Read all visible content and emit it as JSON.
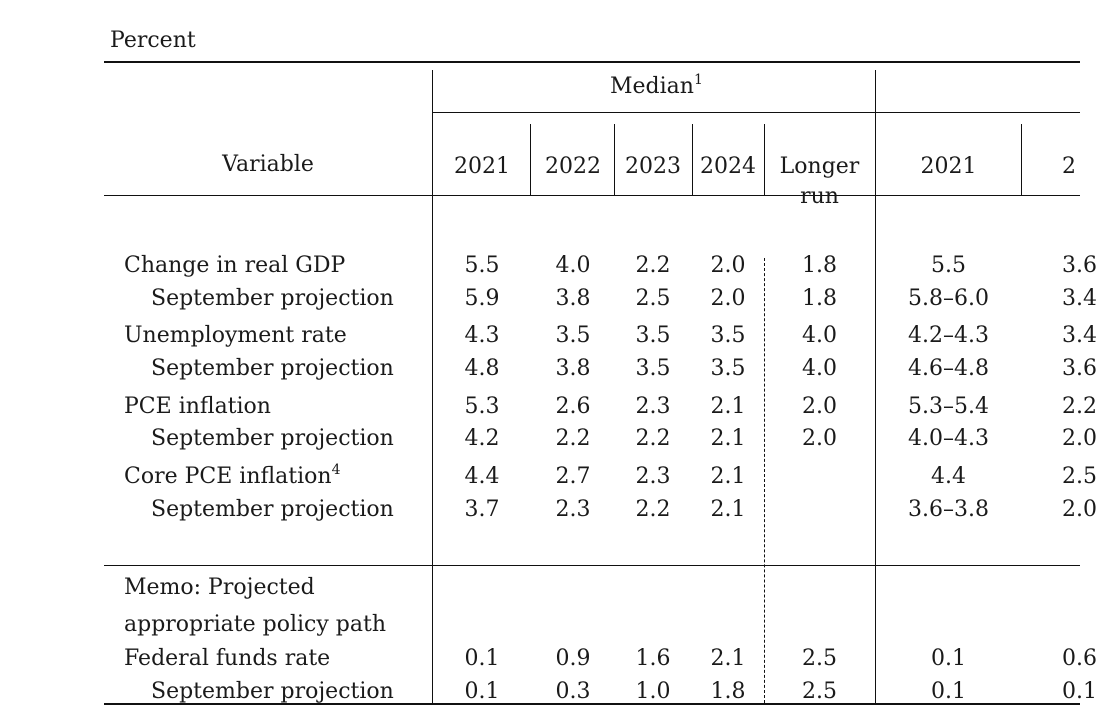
{
  "unit_label": "Percent",
  "header": {
    "variable": "Variable",
    "median": "Median",
    "median_note": "1",
    "years": [
      "2021",
      "2022",
      "2023",
      "2024"
    ],
    "longer_run": [
      "Longer",
      "run"
    ],
    "range_first_year": "2021",
    "range_second_year_partial": "2"
  },
  "rows": [
    {
      "label": "Change in real GDP",
      "median": [
        "5.5",
        "4.0",
        "2.2",
        "2.0",
        "1.8"
      ],
      "range_2021": "5.5",
      "range_2022_partial": "3.6"
    },
    {
      "label": "September projection",
      "median": [
        "5.9",
        "3.8",
        "2.5",
        "2.0",
        "1.8"
      ],
      "range_2021": "5.8–6.0",
      "range_2022_partial": "3.4"
    },
    {
      "label": "Unemployment rate",
      "median": [
        "4.3",
        "3.5",
        "3.5",
        "3.5",
        "4.0"
      ],
      "range_2021": "4.2–4.3",
      "range_2022_partial": "3.4"
    },
    {
      "label": "September projection",
      "median": [
        "4.8",
        "3.8",
        "3.5",
        "3.5",
        "4.0"
      ],
      "range_2021": "4.6–4.8",
      "range_2022_partial": "3.6"
    },
    {
      "label": "PCE inflation",
      "median": [
        "5.3",
        "2.6",
        "2.3",
        "2.1",
        "2.0"
      ],
      "range_2021": "5.3–5.4",
      "range_2022_partial": "2.2"
    },
    {
      "label": "September projection",
      "median": [
        "4.2",
        "2.2",
        "2.2",
        "2.1",
        "2.0"
      ],
      "range_2021": "4.0–4.3",
      "range_2022_partial": "2.0"
    },
    {
      "label": "Core PCE inflation",
      "note": "4",
      "median": [
        "4.4",
        "2.7",
        "2.3",
        "2.1",
        ""
      ],
      "range_2021": "4.4",
      "range_2022_partial": "2.5"
    },
    {
      "label": "September projection",
      "median": [
        "3.7",
        "2.3",
        "2.2",
        "2.1",
        ""
      ],
      "range_2021": "3.6–3.8",
      "range_2022_partial": "2.0"
    }
  ],
  "memo": {
    "line1": "Memo: Projected",
    "line2": "appropriate policy path"
  },
  "policy_rows": [
    {
      "label": "Federal funds rate",
      "median": [
        "0.1",
        "0.9",
        "1.6",
        "2.1",
        "2.5"
      ],
      "range_2021": "0.1",
      "range_2022_partial": "0.6"
    },
    {
      "label": "September projection",
      "median": [
        "0.1",
        "0.3",
        "1.0",
        "1.8",
        "2.5"
      ],
      "range_2021": "0.1",
      "range_2022_partial": "0.1"
    }
  ]
}
